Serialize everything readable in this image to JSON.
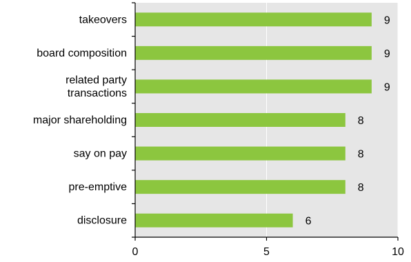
{
  "colors": {
    "bar": "#8cc63f",
    "plot_bg": "#e6e6e6",
    "gridline": "#ffffff",
    "axis": "#000000",
    "text": "#000000"
  },
  "chart_data": {
    "type": "bar",
    "orientation": "horizontal",
    "title": "",
    "xlabel": "",
    "ylabel": "",
    "xlim": [
      0,
      10
    ],
    "xticks": [
      0,
      5,
      10
    ],
    "grid": "vertical",
    "categories": [
      "takeovers",
      "board composition",
      "related party transactions",
      "major shareholding",
      "say on pay",
      "pre-emptive",
      "disclosure"
    ],
    "category_label_lines": [
      [
        "takeovers"
      ],
      [
        "board composition"
      ],
      [
        "related party",
        "transactions"
      ],
      [
        "major shareholding"
      ],
      [
        "say on pay"
      ],
      [
        "pre-emptive"
      ],
      [
        "disclosure"
      ]
    ],
    "values": [
      9,
      9,
      9,
      8,
      8,
      8,
      6
    ],
    "data_labels": [
      "9",
      "9",
      "9",
      "8",
      "8",
      "8",
      "6"
    ]
  }
}
